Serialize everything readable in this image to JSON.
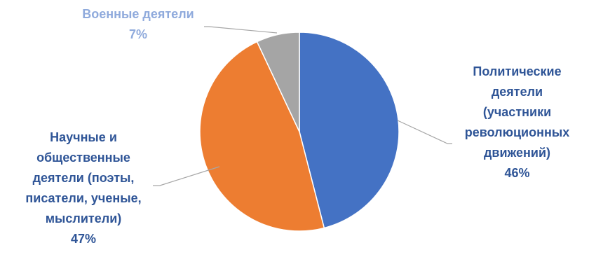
{
  "chart_data": {
    "type": "pie",
    "title": "",
    "slices": [
      {
        "category": "Политические деятели (участники революционных движений)",
        "label_lines": [
          "Политические",
          "деятели",
          "(участники",
          "революционных",
          "движений)"
        ],
        "value": 46,
        "percent_label": "46%",
        "color": "#4472C4",
        "label_color": "#2F5597"
      },
      {
        "category": "Научные и общественные деятели (поэты, писатели, ученые, мыслители)",
        "label_lines": [
          "Научные и",
          "общественные",
          "деятели (поэты,",
          "писатели, ученые,",
          "мыслители)"
        ],
        "value": 47,
        "percent_label": "47%",
        "color": "#ED7D31",
        "label_color": "#2F5597"
      },
      {
        "category": "Военные деятели",
        "label_lines": [
          "Военные деятели"
        ],
        "value": 7,
        "percent_label": "7%",
        "color": "#A5A5A5",
        "label_color": "#8FAADC"
      }
    ],
    "start_angle": "12 o'clock",
    "direction": "clockwise",
    "legend": "none",
    "leader_line_color": "#A6A6A6",
    "slice_border_color": "#FFFFFF"
  }
}
